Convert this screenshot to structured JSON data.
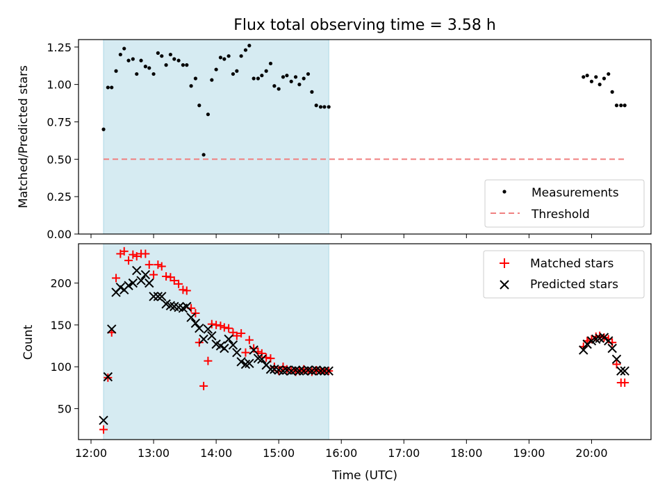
{
  "figure": {
    "title": "Flux total observing time = 3.58 h",
    "xlabel": "Time (UTC)"
  },
  "chart_data": [
    {
      "type": "scatter",
      "ylabel": "Matched/Predicted stars",
      "xlim": [
        11.8,
        20.95
      ],
      "ylim": [
        0.0,
        1.3
      ],
      "x_ticks": [
        12,
        13,
        14,
        15,
        16,
        17,
        18,
        19,
        20
      ],
      "y_ticks": [
        0.0,
        0.25,
        0.5,
        0.75,
        1.0,
        1.25
      ],
      "y_tick_labels": [
        "0.00",
        "0.25",
        "0.50",
        "0.75",
        "1.00",
        "1.25"
      ],
      "shaded_span": [
        12.2,
        15.8
      ],
      "grid": false,
      "legend_loc": "lower right",
      "threshold": {
        "name": "Threshold",
        "y": 0.5,
        "x_range": [
          12.2,
          20.55
        ],
        "color": "#f08080"
      },
      "series": [
        {
          "name": "Measurements",
          "color": "#000000",
          "x": [
            12.2,
            12.27,
            12.33,
            12.4,
            12.47,
            12.53,
            12.6,
            12.67,
            12.73,
            12.8,
            12.87,
            12.93,
            13.0,
            13.07,
            13.13,
            13.2,
            13.27,
            13.33,
            13.4,
            13.47,
            13.53,
            13.6,
            13.67,
            13.73,
            13.8,
            13.87,
            13.93,
            14.0,
            14.07,
            14.13,
            14.2,
            14.27,
            14.33,
            14.4,
            14.47,
            14.53,
            14.6,
            14.67,
            14.73,
            14.8,
            14.87,
            14.93,
            15.0,
            15.07,
            15.13,
            15.2,
            15.27,
            15.33,
            15.4,
            15.47,
            15.53,
            15.6,
            15.67,
            15.73,
            15.8,
            19.87,
            19.93,
            20.0,
            20.07,
            20.13,
            20.2,
            20.27,
            20.33,
            20.4,
            20.47,
            20.53
          ],
          "y": [
            0.7,
            0.98,
            0.98,
            1.09,
            1.2,
            1.24,
            1.16,
            1.17,
            1.07,
            1.16,
            1.12,
            1.11,
            1.07,
            1.21,
            1.19,
            1.13,
            1.2,
            1.17,
            1.16,
            1.13,
            1.13,
            0.99,
            1.04,
            0.86,
            0.53,
            0.8,
            1.03,
            1.1,
            1.18,
            1.17,
            1.19,
            1.07,
            1.09,
            1.19,
            1.23,
            1.26,
            1.04,
            1.04,
            1.06,
            1.09,
            1.14,
            0.99,
            0.97,
            1.05,
            1.06,
            1.02,
            1.05,
            1.0,
            1.04,
            1.07,
            0.95,
            0.86,
            0.85,
            0.85,
            0.85,
            1.05,
            1.06,
            1.02,
            1.05,
            1.0,
            1.04,
            1.07,
            0.95,
            0.86,
            0.86,
            0.86
          ]
        }
      ]
    },
    {
      "type": "scatter",
      "ylabel": "Count",
      "xlim": [
        11.8,
        20.95
      ],
      "ylim": [
        13,
        247
      ],
      "x_ticks": [
        12,
        13,
        14,
        15,
        16,
        17,
        18,
        19,
        20
      ],
      "x_tick_labels": [
        "12:00",
        "13:00",
        "14:00",
        "15:00",
        "16:00",
        "17:00",
        "18:00",
        "19:00",
        "20:00"
      ],
      "y_ticks": [
        50,
        100,
        150,
        200
      ],
      "shaded_span": [
        12.2,
        15.8
      ],
      "grid": false,
      "legend_loc": "upper right",
      "series": [
        {
          "name": "Matched stars",
          "marker": "plus",
          "color": "#ff0000",
          "x": [
            12.2,
            12.27,
            12.33,
            12.4,
            12.47,
            12.53,
            12.6,
            12.67,
            12.73,
            12.8,
            12.87,
            12.93,
            13.0,
            13.07,
            13.13,
            13.2,
            13.27,
            13.33,
            13.4,
            13.47,
            13.53,
            13.6,
            13.67,
            13.73,
            13.8,
            13.87,
            13.93,
            14.0,
            14.07,
            14.13,
            14.2,
            14.27,
            14.33,
            14.4,
            14.47,
            14.53,
            14.6,
            14.67,
            14.73,
            14.8,
            14.87,
            14.93,
            15.0,
            15.07,
            15.13,
            15.2,
            15.27,
            15.33,
            15.4,
            15.47,
            15.53,
            15.6,
            15.67,
            15.73,
            15.8,
            19.87,
            19.93,
            20.0,
            20.07,
            20.13,
            20.2,
            20.27,
            20.33,
            20.4,
            20.47,
            20.53
          ],
          "y": [
            25,
            87,
            141,
            206,
            235,
            238,
            227,
            234,
            232,
            235,
            235,
            222,
            210,
            222,
            220,
            208,
            207,
            203,
            199,
            192,
            191,
            170,
            164,
            129,
            77,
            107,
            151,
            150,
            149,
            147,
            146,
            141,
            137,
            140,
            117,
            132,
            122,
            118,
            116,
            111,
            110,
            100,
            95,
            100,
            97,
            96,
            94,
            95,
            97,
            95,
            94,
            96,
            95,
            95,
            95,
            124,
            131,
            133,
            136,
            137,
            135,
            133,
            129,
            103,
            81,
            81
          ],
          "y_note": "tail values after 15.1 approximate"
        },
        {
          "name": "Predicted stars",
          "marker": "x",
          "color": "#000000",
          "x": [
            12.2,
            12.27,
            12.33,
            12.4,
            12.47,
            12.53,
            12.6,
            12.67,
            12.73,
            12.8,
            12.87,
            12.93,
            13.0,
            13.07,
            13.13,
            13.2,
            13.27,
            13.33,
            13.4,
            13.47,
            13.53,
            13.6,
            13.67,
            13.73,
            13.8,
            13.87,
            13.93,
            14.0,
            14.07,
            14.13,
            14.2,
            14.27,
            14.33,
            14.4,
            14.47,
            14.53,
            14.6,
            14.67,
            14.73,
            14.8,
            14.87,
            14.93,
            15.0,
            15.07,
            15.13,
            15.2,
            15.27,
            15.33,
            15.4,
            15.47,
            15.53,
            15.6,
            15.67,
            15.73,
            15.8,
            19.87,
            19.93,
            20.0,
            20.07,
            20.13,
            20.2,
            20.27,
            20.33,
            20.4,
            20.47,
            20.53
          ],
          "y": [
            36,
            88,
            145,
            189,
            195,
            192,
            197,
            200,
            215,
            203,
            210,
            200,
            184,
            184,
            184,
            175,
            173,
            172,
            171,
            170,
            172,
            159,
            152,
            146,
            133,
            145,
            137,
            127,
            125,
            122,
            133,
            126,
            117,
            106,
            103,
            104,
            120,
            110,
            109,
            102,
            97,
            97,
            96,
            95,
            96,
            95,
            96,
            95,
            95,
            96,
            95,
            96,
            95,
            95,
            95,
            120,
            127,
            131,
            133,
            134,
            135,
            131,
            122,
            109,
            95,
            95
          ]
        }
      ]
    }
  ]
}
